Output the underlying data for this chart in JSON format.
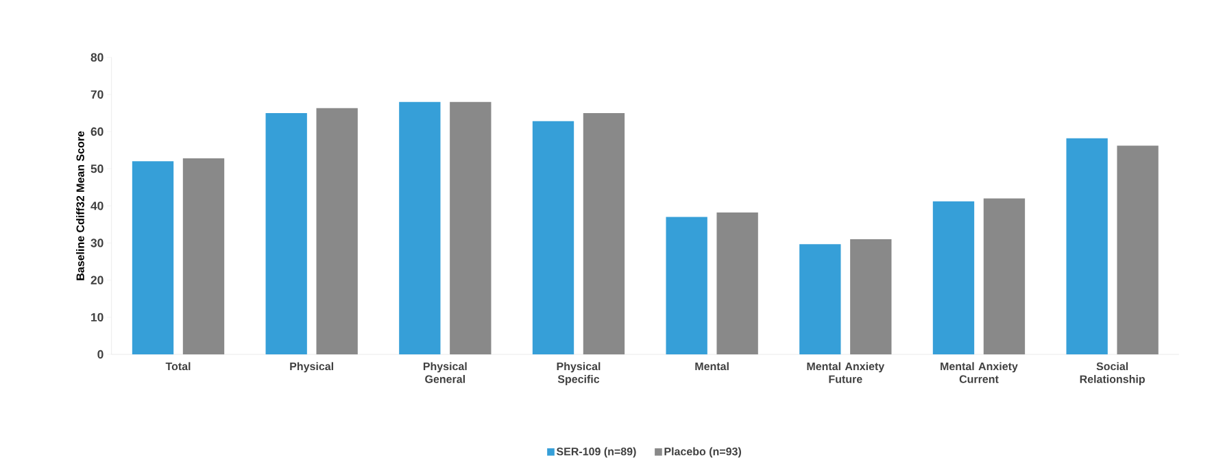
{
  "chart_data": {
    "type": "bar",
    "ylabel": "Baseline Cdiff32 Mean Score",
    "categories": [
      "Total",
      "Physical",
      "Physical General",
      "Physical Specific",
      "Mental",
      "Mental Anxiety Future",
      "Mental Anxiety Current",
      "Social Relationship"
    ],
    "series": [
      {
        "name": "SER-109 (n=89)",
        "color": "#369fd8",
        "values": [
          52,
          65,
          68,
          62.8,
          37,
          29.7,
          41.2,
          58.2
        ]
      },
      {
        "name": "Placebo (n=93)",
        "color": "#898989",
        "values": [
          52.8,
          66.3,
          68,
          65,
          38.2,
          31,
          42,
          56.2
        ]
      }
    ],
    "ylim": [
      0,
      80
    ],
    "yticks": [
      0,
      10,
      20,
      30,
      40,
      50,
      60,
      70,
      80
    ],
    "grid": false,
    "legend": "bottom"
  }
}
